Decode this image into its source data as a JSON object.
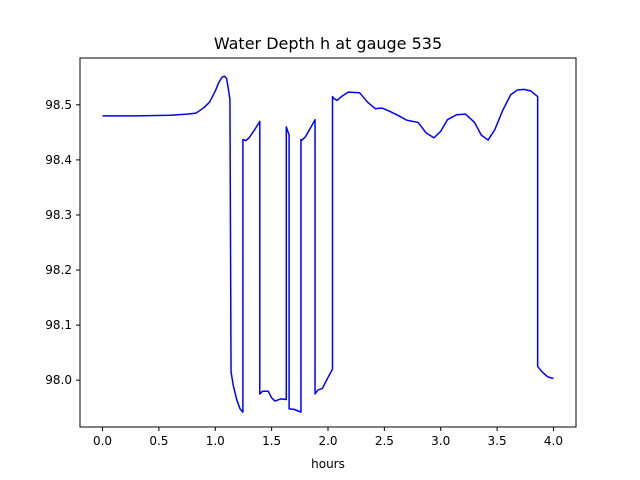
{
  "chart_data": {
    "type": "line",
    "title": "Water Depth h at gauge 535",
    "xlabel": "hours",
    "ylabel": "",
    "xlim": [
      -0.2,
      4.2
    ],
    "ylim": [
      97.915,
      98.585
    ],
    "grid": false,
    "xticks": [
      0.0,
      0.5,
      1.0,
      1.5,
      2.0,
      2.5,
      3.0,
      3.5,
      4.0
    ],
    "xtick_labels": [
      "0.0",
      "0.5",
      "1.0",
      "1.5",
      "2.0",
      "2.5",
      "3.0",
      "3.5",
      "4.0"
    ],
    "yticks": [
      98.0,
      98.1,
      98.2,
      98.3,
      98.4,
      98.5
    ],
    "ytick_labels": [
      "98.0",
      "98.1",
      "98.2",
      "98.3",
      "98.4",
      "98.5"
    ],
    "line_color": "#0000ff",
    "series": [
      {
        "x": [
          0.0,
          0.3,
          0.6,
          0.75,
          0.83,
          0.9,
          0.95,
          1.0,
          1.03,
          1.06,
          1.08,
          1.1,
          1.115,
          1.13,
          1.14,
          1.14,
          1.16,
          1.19,
          1.22,
          1.245,
          1.245,
          1.27,
          1.3,
          1.35,
          1.395,
          1.395,
          1.42,
          1.47,
          1.5,
          1.53,
          1.58,
          1.63,
          1.63,
          1.655,
          1.655,
          1.7,
          1.76,
          1.76,
          1.77,
          1.8,
          1.85,
          1.885,
          1.885,
          1.91,
          1.95,
          2.0,
          2.04,
          2.04,
          2.05,
          2.08,
          2.12,
          2.18,
          2.28,
          2.35,
          2.42,
          2.48,
          2.55,
          2.62,
          2.7,
          2.8,
          2.87,
          2.94,
          3.0,
          3.06,
          3.14,
          3.22,
          3.3,
          3.36,
          3.42,
          3.48,
          3.55,
          3.62,
          3.68,
          3.74,
          3.8,
          3.83,
          3.86,
          3.86,
          3.9,
          3.95,
          4.0
        ],
        "y": [
          98.48,
          98.48,
          98.481,
          98.483,
          98.485,
          98.495,
          98.505,
          98.525,
          98.54,
          98.55,
          98.552,
          98.548,
          98.53,
          98.51,
          98.015,
          98.015,
          97.99,
          97.965,
          97.948,
          97.942,
          98.437,
          98.435,
          98.44,
          98.455,
          98.47,
          97.975,
          97.98,
          97.98,
          97.968,
          97.962,
          97.966,
          97.965,
          98.46,
          98.445,
          97.948,
          97.947,
          97.942,
          98.437,
          98.436,
          98.442,
          98.46,
          98.473,
          97.975,
          97.982,
          97.985,
          98.005,
          98.02,
          98.515,
          98.512,
          98.508,
          98.515,
          98.523,
          98.522,
          98.505,
          98.493,
          98.494,
          98.488,
          98.481,
          98.472,
          98.468,
          98.449,
          98.44,
          98.452,
          98.473,
          98.482,
          98.483,
          98.468,
          98.445,
          98.436,
          98.455,
          98.49,
          98.518,
          98.527,
          98.528,
          98.525,
          98.52,
          98.515,
          98.025,
          98.015,
          98.006,
          98.003
        ]
      }
    ]
  }
}
